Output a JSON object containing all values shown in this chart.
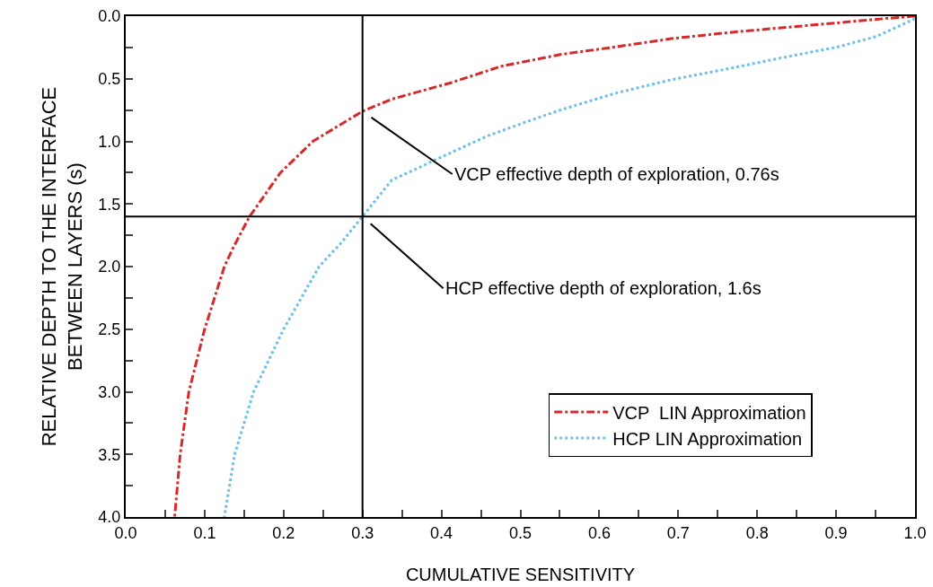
{
  "chart_data": {
    "type": "line",
    "xlabel": "CUMULATIVE SENSITIVITY",
    "ylabel": "RELATIVE DEPTH TO THE INTERFACE\nBETWEEN LAYERS (s)",
    "xlim": [
      0,
      1
    ],
    "ylim": [
      4,
      0
    ],
    "xticks": [
      {
        "value": 0,
        "label": "0.0"
      },
      {
        "value": 0.05,
        "label": null
      },
      {
        "value": 0.1,
        "label": "0.1"
      },
      {
        "value": 0.15,
        "label": null
      },
      {
        "value": 0.2,
        "label": "0.2"
      },
      {
        "value": 0.25,
        "label": null
      },
      {
        "value": 0.3,
        "label": "0.3"
      },
      {
        "value": 0.35,
        "label": null
      },
      {
        "value": 0.4,
        "label": "0.4"
      },
      {
        "value": 0.45,
        "label": null
      },
      {
        "value": 0.5,
        "label": "0.5"
      },
      {
        "value": 0.55,
        "label": null
      },
      {
        "value": 0.6,
        "label": "0.6"
      },
      {
        "value": 0.65,
        "label": null
      },
      {
        "value": 0.7,
        "label": "0.7"
      },
      {
        "value": 0.75,
        "label": null
      },
      {
        "value": 0.8,
        "label": "0.8"
      },
      {
        "value": 0.85,
        "label": null
      },
      {
        "value": 0.9,
        "label": "0.9"
      },
      {
        "value": 0.95,
        "label": null
      },
      {
        "value": 1,
        "label": "1.0"
      }
    ],
    "yticks": [
      {
        "value": 0,
        "label": "0.0"
      },
      {
        "value": 0.25,
        "label": null
      },
      {
        "value": 0.5,
        "label": "0.5"
      },
      {
        "value": 0.75,
        "label": null
      },
      {
        "value": 1,
        "label": "1.0"
      },
      {
        "value": 1.25,
        "label": null
      },
      {
        "value": 1.5,
        "label": "1.5"
      },
      {
        "value": 1.75,
        "label": null
      },
      {
        "value": 2,
        "label": "2.0"
      },
      {
        "value": 2.25,
        "label": null
      },
      {
        "value": 2.5,
        "label": "2.5"
      },
      {
        "value": 2.75,
        "label": null
      },
      {
        "value": 3,
        "label": "3.0"
      },
      {
        "value": 3.25,
        "label": null
      },
      {
        "value": 3.5,
        "label": "3.5"
      },
      {
        "value": 3.75,
        "label": null
      },
      {
        "value": 4,
        "label": "4.0"
      }
    ],
    "grid": false,
    "legend": "bottom right",
    "marker": "none",
    "series": [
      {
        "name": "VCP  LIN Approximation",
        "color": "#d42a2a",
        "line_style": "dashed",
        "x": [
          1.0,
          0.962,
          0.895,
          0.827,
          0.759,
          0.691,
          0.62,
          0.552,
          0.476,
          0.412,
          0.337,
          0.3,
          0.237,
          0.196,
          0.157,
          0.136,
          0.125,
          0.1,
          0.08,
          0.069,
          0.062
        ],
        "values": [
          0,
          0.019,
          0.057,
          0.095,
          0.134,
          0.18,
          0.246,
          0.305,
          0.4,
          0.532,
          0.663,
          0.76,
          1.0,
          1.25,
          1.6,
          1.85,
          2.0,
          2.5,
          3.0,
          3.5,
          4.0
        ]
      },
      {
        "name": "HCP LIN Approximation",
        "color": "#6ec0ea",
        "line_style": "dotted",
        "x": [
          1.0,
          0.951,
          0.902,
          0.834,
          0.759,
          0.691,
          0.62,
          0.552,
          0.503,
          0.457,
          0.412,
          0.337,
          0.3,
          0.273,
          0.245,
          0.2,
          0.162,
          0.138,
          0.125
        ],
        "values": [
          0.02,
          0.162,
          0.246,
          0.329,
          0.425,
          0.508,
          0.616,
          0.747,
          0.854,
          0.96,
          1.09,
          1.31,
          1.6,
          1.81,
          2.0,
          2.5,
          3.0,
          3.5,
          4.0
        ]
      }
    ],
    "ref_lines": [
      {
        "axis": "x",
        "value": 0.3,
        "color": "#000000"
      },
      {
        "axis": "y",
        "value": 1.6,
        "color": "#000000"
      }
    ],
    "annotations": [
      {
        "text": "VCP effective depth of exploration, 0.76s",
        "x": 0.3,
        "y": 0.76
      },
      {
        "text": "HCP effective depth of exploration, 1.6s",
        "x": 0.3,
        "y": 1.6
      }
    ]
  }
}
